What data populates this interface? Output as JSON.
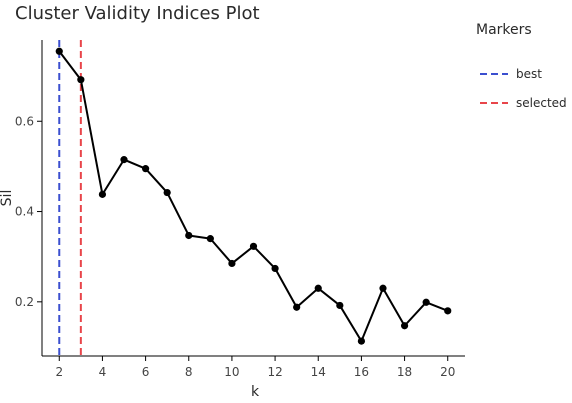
{
  "chart_data": {
    "type": "line",
    "title": "Cluster Validity Indices Plot",
    "xlabel": "k",
    "ylabel": "Sil",
    "xlim": [
      1.2,
      20.8
    ],
    "ylim": [
      0.08,
      0.78
    ],
    "x_ticks": [
      2,
      4,
      6,
      8,
      10,
      12,
      14,
      16,
      18,
      20
    ],
    "x_tick_labels": [
      "2",
      "4",
      "6",
      "8",
      "10",
      "12",
      "14",
      "16",
      "18",
      "20"
    ],
    "y_ticks": [
      0.2,
      0.4,
      0.6
    ],
    "y_tick_labels": [
      "0.2",
      "0.4",
      "0.6"
    ],
    "grid": false,
    "legend_position": "top-right",
    "series": [
      {
        "x": [
          2,
          3,
          4,
          5,
          6,
          7,
          8,
          9,
          10,
          11,
          12,
          13,
          14,
          15,
          16,
          17,
          18,
          19,
          20
        ],
        "values": [
          0.755,
          0.692,
          0.438,
          0.515,
          0.495,
          0.442,
          0.347,
          0.34,
          0.285,
          0.323,
          0.274,
          0.188,
          0.23,
          0.192,
          0.113,
          0.23,
          0.147,
          0.199,
          0.18
        ],
        "color": "#000000"
      }
    ],
    "markers": [
      {
        "name": "best",
        "x": 2,
        "color": "#3b4fcf"
      },
      {
        "name": "selected",
        "x": 3,
        "color": "#e8454a"
      }
    ],
    "legend": {
      "title": "Markers",
      "entries": [
        {
          "label": "best",
          "color": "#3b4fcf"
        },
        {
          "label": "selected",
          "color": "#e8454a"
        }
      ]
    }
  }
}
